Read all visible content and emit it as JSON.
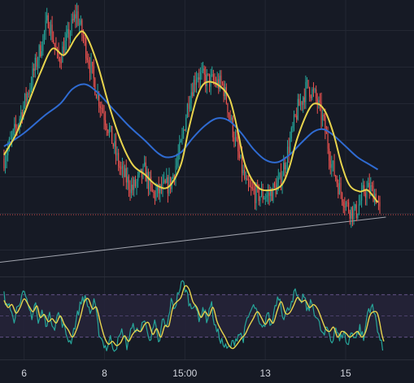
{
  "chart_data": [
    {
      "type": "candlestick",
      "panel": "price",
      "x_tick_labels": [
        "6",
        "8",
        "15:00",
        "13",
        "15"
      ],
      "x_tick_positions": [
        0.5,
        2.5,
        4.5,
        6.5,
        8.5
      ],
      "x_range": [
        -0.1,
        10.2
      ],
      "y_range": [
        0.5,
        22.5
      ],
      "grid": true,
      "colors": {
        "up": "#26a69a",
        "down": "#ef5350",
        "fast_ma": "#e8d44d",
        "slow_ma": "#2f6bd2",
        "trend_line": "#b2b5be",
        "price_line": "#ef5350",
        "grid": "#232733",
        "background": "#161a25"
      },
      "close_anchors": [
        [
          0.0,
          9.5
        ],
        [
          0.3,
          12.0
        ],
        [
          0.6,
          15.0
        ],
        [
          0.9,
          18.5
        ],
        [
          1.1,
          21.0
        ],
        [
          1.35,
          17.5
        ],
        [
          1.6,
          19.5
        ],
        [
          1.8,
          21.5
        ],
        [
          2.0,
          19.0
        ],
        [
          2.3,
          15.0
        ],
        [
          2.6,
          12.0
        ],
        [
          2.9,
          8.5
        ],
        [
          3.2,
          7.0
        ],
        [
          3.5,
          8.5
        ],
        [
          3.7,
          6.5
        ],
        [
          3.95,
          7.0
        ],
        [
          4.15,
          7.5
        ],
        [
          4.4,
          10.5
        ],
        [
          4.6,
          14.5
        ],
        [
          4.8,
          16.5
        ],
        [
          5.0,
          16.0
        ],
        [
          5.2,
          15.8
        ],
        [
          5.45,
          15.5
        ],
        [
          5.65,
          12.5
        ],
        [
          5.85,
          9.5
        ],
        [
          6.05,
          7.0
        ],
        [
          6.3,
          6.5
        ],
        [
          6.6,
          6.5
        ],
        [
          6.85,
          7.5
        ],
        [
          7.05,
          10.0
        ],
        [
          7.3,
          13.5
        ],
        [
          7.55,
          15.5
        ],
        [
          7.75,
          14.5
        ],
        [
          7.95,
          12.5
        ],
        [
          8.15,
          9.0
        ],
        [
          8.35,
          7.0
        ],
        [
          8.55,
          5.5
        ],
        [
          8.75,
          5.0
        ],
        [
          8.95,
          6.8
        ],
        [
          9.1,
          7.0
        ],
        [
          9.25,
          6.5
        ],
        [
          9.35,
          5.0
        ]
      ],
      "fast_ma": [
        [
          0.0,
          9.8
        ],
        [
          0.3,
          11.5
        ],
        [
          0.6,
          14.0
        ],
        [
          0.9,
          16.5
        ],
        [
          1.2,
          18.5
        ],
        [
          1.5,
          18.0
        ],
        [
          1.8,
          19.5
        ],
        [
          2.0,
          19.8
        ],
        [
          2.3,
          17.5
        ],
        [
          2.6,
          14.0
        ],
        [
          2.9,
          11.0
        ],
        [
          3.2,
          9.0
        ],
        [
          3.5,
          8.2
        ],
        [
          3.8,
          7.3
        ],
        [
          4.1,
          7.2
        ],
        [
          4.4,
          9.0
        ],
        [
          4.6,
          12.0
        ],
        [
          4.8,
          14.5
        ],
        [
          5.0,
          15.7
        ],
        [
          5.3,
          15.6
        ],
        [
          5.6,
          14.5
        ],
        [
          5.8,
          12.0
        ],
        [
          6.0,
          9.0
        ],
        [
          6.3,
          7.2
        ],
        [
          6.6,
          6.9
        ],
        [
          6.9,
          7.3
        ],
        [
          7.1,
          8.8
        ],
        [
          7.3,
          11.2
        ],
        [
          7.6,
          13.6
        ],
        [
          7.8,
          14.0
        ],
        [
          8.0,
          13.3
        ],
        [
          8.2,
          11.5
        ],
        [
          8.4,
          9.0
        ],
        [
          8.6,
          7.3
        ],
        [
          8.85,
          6.8
        ],
        [
          9.05,
          6.9
        ],
        [
          9.3,
          5.9
        ]
      ],
      "slow_ma": [
        [
          0.0,
          10.5
        ],
        [
          0.5,
          11.6
        ],
        [
          1.0,
          13.0
        ],
        [
          1.4,
          14.0
        ],
        [
          1.7,
          15.2
        ],
        [
          2.0,
          15.6
        ],
        [
          2.3,
          15.0
        ],
        [
          2.7,
          13.6
        ],
        [
          3.1,
          12.2
        ],
        [
          3.5,
          11.0
        ],
        [
          3.85,
          9.9
        ],
        [
          4.1,
          9.6
        ],
        [
          4.4,
          10.0
        ],
        [
          4.7,
          11.2
        ],
        [
          5.0,
          12.2
        ],
        [
          5.3,
          12.8
        ],
        [
          5.6,
          12.6
        ],
        [
          5.9,
          11.6
        ],
        [
          6.2,
          10.3
        ],
        [
          6.5,
          9.4
        ],
        [
          6.8,
          9.2
        ],
        [
          7.1,
          9.8
        ],
        [
          7.4,
          10.8
        ],
        [
          7.7,
          11.7
        ],
        [
          7.95,
          11.9
        ],
        [
          8.2,
          11.4
        ],
        [
          8.5,
          10.5
        ],
        [
          8.8,
          9.6
        ],
        [
          9.1,
          9.0
        ],
        [
          9.3,
          8.6
        ]
      ],
      "trend_line": [
        [
          -0.1,
          1.0
        ],
        [
          9.5,
          4.7
        ]
      ],
      "last_price_line": 4.9
    },
    {
      "type": "line",
      "panel": "oscillator",
      "x_range": [
        -0.1,
        10.2
      ],
      "y_range": [
        0,
        100
      ],
      "band": [
        20,
        80
      ],
      "midline": 50,
      "colors": {
        "oscillator": "#26a69a",
        "signal": "#e8d44d",
        "band_fill": "#252339",
        "band_lines": "#6f5b96"
      },
      "signal_anchors": [
        [
          0.0,
          72
        ],
        [
          0.1,
          62
        ],
        [
          0.2,
          66
        ],
        [
          0.3,
          54
        ],
        [
          0.4,
          62
        ],
        [
          0.5,
          74
        ],
        [
          0.62,
          64
        ],
        [
          0.72,
          56
        ],
        [
          0.82,
          64
        ],
        [
          0.9,
          48
        ],
        [
          1.0,
          52
        ],
        [
          1.1,
          42
        ],
        [
          1.2,
          46
        ],
        [
          1.3,
          40
        ],
        [
          1.4,
          50
        ],
        [
          1.5,
          38
        ],
        [
          1.6,
          30
        ],
        [
          1.7,
          20
        ],
        [
          1.8,
          30
        ],
        [
          1.9,
          48
        ],
        [
          2.0,
          70
        ],
        [
          2.1,
          74
        ],
        [
          2.2,
          60
        ],
        [
          2.3,
          62
        ],
        [
          2.4,
          40
        ],
        [
          2.5,
          20
        ],
        [
          2.6,
          10
        ],
        [
          2.7,
          14
        ],
        [
          2.8,
          8
        ],
        [
          2.9,
          12
        ],
        [
          3.0,
          22
        ],
        [
          3.1,
          14
        ],
        [
          3.2,
          24
        ],
        [
          3.3,
          30
        ],
        [
          3.4,
          28
        ],
        [
          3.5,
          38
        ],
        [
          3.6,
          40
        ],
        [
          3.7,
          24
        ],
        [
          3.8,
          32
        ],
        [
          3.9,
          20
        ],
        [
          4.0,
          36
        ],
        [
          4.1,
          36
        ],
        [
          4.2,
          62
        ],
        [
          4.3,
          70
        ],
        [
          4.4,
          76
        ],
        [
          4.5,
          92
        ],
        [
          4.6,
          88
        ],
        [
          4.7,
          70
        ],
        [
          4.8,
          62
        ],
        [
          4.9,
          48
        ],
        [
          5.0,
          56
        ],
        [
          5.1,
          50
        ],
        [
          5.2,
          62
        ],
        [
          5.3,
          42
        ],
        [
          5.4,
          30
        ],
        [
          5.5,
          20
        ],
        [
          5.6,
          8
        ],
        [
          5.7,
          4
        ],
        [
          5.8,
          10
        ],
        [
          5.9,
          18
        ],
        [
          6.0,
          24
        ],
        [
          6.1,
          36
        ],
        [
          6.2,
          46
        ],
        [
          6.3,
          56
        ],
        [
          6.4,
          48
        ],
        [
          6.5,
          38
        ],
        [
          6.6,
          46
        ],
        [
          6.7,
          40
        ],
        [
          6.8,
          58
        ],
        [
          6.9,
          70
        ],
        [
          7.0,
          54
        ],
        [
          7.1,
          54
        ],
        [
          7.2,
          64
        ],
        [
          7.3,
          76
        ],
        [
          7.4,
          70
        ],
        [
          7.5,
          72
        ],
        [
          7.6,
          62
        ],
        [
          7.7,
          66
        ],
        [
          7.8,
          60
        ],
        [
          7.9,
          46
        ],
        [
          8.0,
          32
        ],
        [
          8.1,
          28
        ],
        [
          8.2,
          34
        ],
        [
          8.3,
          20
        ],
        [
          8.4,
          28
        ],
        [
          8.5,
          26
        ],
        [
          8.6,
          20
        ],
        [
          8.7,
          24
        ],
        [
          8.8,
          28
        ],
        [
          8.9,
          20
        ],
        [
          9.0,
          28
        ],
        [
          9.1,
          50
        ],
        [
          9.2,
          56
        ],
        [
          9.3,
          52
        ],
        [
          9.4,
          24
        ],
        [
          9.45,
          14
        ]
      ],
      "oscillator_anchors": [
        [
          0.0,
          80
        ],
        [
          0.05,
          60
        ],
        [
          0.12,
          70
        ],
        [
          0.2,
          60
        ],
        [
          0.27,
          42
        ],
        [
          0.33,
          66
        ],
        [
          0.42,
          76
        ],
        [
          0.5,
          80
        ],
        [
          0.6,
          62
        ],
        [
          0.7,
          50
        ],
        [
          0.78,
          72
        ],
        [
          0.85,
          38
        ],
        [
          0.95,
          56
        ],
        [
          1.05,
          40
        ],
        [
          1.15,
          50
        ],
        [
          1.25,
          34
        ],
        [
          1.35,
          54
        ],
        [
          1.45,
          40
        ],
        [
          1.55,
          24
        ],
        [
          1.65,
          12
        ],
        [
          1.75,
          34
        ],
        [
          1.85,
          56
        ],
        [
          1.95,
          76
        ],
        [
          2.05,
          72
        ],
        [
          2.15,
          54
        ],
        [
          2.25,
          70
        ],
        [
          2.35,
          30
        ],
        [
          2.45,
          14
        ],
        [
          2.55,
          4
        ],
        [
          2.65,
          18
        ],
        [
          2.75,
          2
        ],
        [
          2.85,
          16
        ],
        [
          2.95,
          30
        ],
        [
          3.05,
          6
        ],
        [
          3.15,
          28
        ],
        [
          3.25,
          36
        ],
        [
          3.35,
          22
        ],
        [
          3.45,
          44
        ],
        [
          3.55,
          34
        ],
        [
          3.65,
          16
        ],
        [
          3.75,
          40
        ],
        [
          3.85,
          8
        ],
        [
          3.95,
          46
        ],
        [
          4.05,
          30
        ],
        [
          4.15,
          70
        ],
        [
          4.25,
          62
        ],
        [
          4.35,
          86
        ],
        [
          4.45,
          98
        ],
        [
          4.55,
          82
        ],
        [
          4.65,
          60
        ],
        [
          4.75,
          72
        ],
        [
          4.85,
          40
        ],
        [
          4.95,
          64
        ],
        [
          5.05,
          44
        ],
        [
          5.15,
          70
        ],
        [
          5.25,
          34
        ],
        [
          5.35,
          22
        ],
        [
          5.45,
          10
        ],
        [
          5.55,
          2
        ],
        [
          5.65,
          8
        ],
        [
          5.75,
          16
        ],
        [
          5.85,
          26
        ],
        [
          5.95,
          18
        ],
        [
          6.05,
          44
        ],
        [
          6.15,
          58
        ],
        [
          6.25,
          64
        ],
        [
          6.35,
          36
        ],
        [
          6.45,
          30
        ],
        [
          6.55,
          56
        ],
        [
          6.65,
          34
        ],
        [
          6.75,
          68
        ],
        [
          6.85,
          80
        ],
        [
          6.95,
          48
        ],
        [
          7.05,
          56
        ],
        [
          7.15,
          72
        ],
        [
          7.25,
          84
        ],
        [
          7.35,
          64
        ],
        [
          7.45,
          80
        ],
        [
          7.55,
          56
        ],
        [
          7.65,
          70
        ],
        [
          7.75,
          52
        ],
        [
          7.85,
          36
        ],
        [
          7.95,
          20
        ],
        [
          8.05,
          34
        ],
        [
          8.15,
          12
        ],
        [
          8.25,
          36
        ],
        [
          8.35,
          14
        ],
        [
          8.45,
          30
        ],
        [
          8.55,
          6
        ],
        [
          8.65,
          30
        ],
        [
          8.75,
          18
        ],
        [
          8.85,
          34
        ],
        [
          8.95,
          16
        ],
        [
          9.05,
          58
        ],
        [
          9.15,
          64
        ],
        [
          9.25,
          46
        ],
        [
          9.35,
          18
        ],
        [
          9.42,
          2
        ]
      ]
    }
  ]
}
